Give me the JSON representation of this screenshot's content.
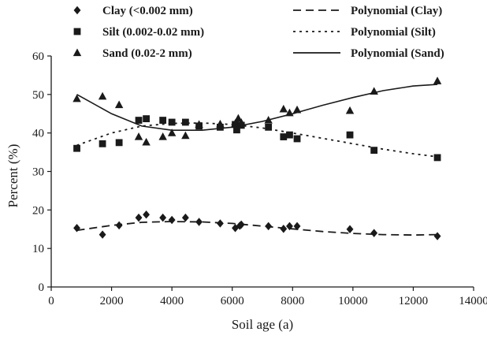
{
  "chart_data": {
    "type": "scatter",
    "title": "",
    "xlabel": "Soil age (a)",
    "ylabel": "Percent (%)",
    "xlim": [
      0,
      14000
    ],
    "ylim": [
      0,
      60
    ],
    "xticks": [
      "0",
      "2000",
      "4000",
      "6000",
      "8000",
      "10000",
      "12000",
      "14000"
    ],
    "yticks": [
      "0",
      "10",
      "20",
      "30",
      "40",
      "50",
      "60"
    ],
    "grid": false,
    "legend_placement": "top",
    "series": [
      {
        "name": "Clay (<0.002 mm)",
        "marker": "diamond",
        "color": "#1a1a1a",
        "points": [
          [
            850,
            15.3
          ],
          [
            1700,
            13.6
          ],
          [
            2250,
            16.0
          ],
          [
            2900,
            18.0
          ],
          [
            3150,
            18.8
          ],
          [
            3700,
            18.0
          ],
          [
            4000,
            17.4
          ],
          [
            4450,
            18.0
          ],
          [
            4900,
            16.9
          ],
          [
            5600,
            16.5
          ],
          [
            6100,
            15.3
          ],
          [
            6250,
            15.9
          ],
          [
            6300,
            16.2
          ],
          [
            7200,
            15.8
          ],
          [
            7700,
            15.1
          ],
          [
            7900,
            15.8
          ],
          [
            8150,
            15.8
          ],
          [
            9900,
            15.0
          ],
          [
            10700,
            14.0
          ],
          [
            12800,
            13.2
          ]
        ]
      },
      {
        "name": "Silt (0.002-0.02 mm)",
        "marker": "square",
        "color": "#1a1a1a",
        "points": [
          [
            850,
            36.0
          ],
          [
            1700,
            37.2
          ],
          [
            2250,
            37.5
          ],
          [
            2900,
            43.3
          ],
          [
            3150,
            43.7
          ],
          [
            3700,
            43.3
          ],
          [
            4000,
            42.8
          ],
          [
            4450,
            42.8
          ],
          [
            4900,
            41.8
          ],
          [
            5600,
            41.5
          ],
          [
            6100,
            42.2
          ],
          [
            6150,
            40.8
          ],
          [
            6300,
            42.0
          ],
          [
            7200,
            41.5
          ],
          [
            7700,
            39.0
          ],
          [
            7900,
            39.5
          ],
          [
            8150,
            38.5
          ],
          [
            9900,
            39.5
          ],
          [
            10700,
            35.5
          ],
          [
            12800,
            33.6
          ]
        ]
      },
      {
        "name": "Sand (0.02-2 mm)",
        "marker": "triangle",
        "color": "#1a1a1a",
        "points": [
          [
            850,
            48.9
          ],
          [
            1700,
            49.5
          ],
          [
            2250,
            47.3
          ],
          [
            2900,
            39.0
          ],
          [
            3150,
            37.6
          ],
          [
            3700,
            39.0
          ],
          [
            4000,
            40.0
          ],
          [
            4450,
            39.3
          ],
          [
            4900,
            42.2
          ],
          [
            5600,
            42.3
          ],
          [
            6100,
            42.5
          ],
          [
            6200,
            43.8
          ],
          [
            6300,
            42.7
          ],
          [
            7200,
            43.3
          ],
          [
            7700,
            46.2
          ],
          [
            7900,
            45.2
          ],
          [
            8150,
            46.0
          ],
          [
            9900,
            45.8
          ],
          [
            10700,
            50.8
          ],
          [
            12800,
            53.5
          ]
        ]
      }
    ],
    "trendlines": [
      {
        "name": "Polynomial (Clay)",
        "style": "dashed",
        "points": [
          [
            850,
            14.7
          ],
          [
            2000,
            16.0
          ],
          [
            3000,
            16.8
          ],
          [
            4000,
            17.0
          ],
          [
            5000,
            16.9
          ],
          [
            6000,
            16.5
          ],
          [
            7000,
            15.8
          ],
          [
            8000,
            15.1
          ],
          [
            9000,
            14.4
          ],
          [
            10000,
            13.9
          ],
          [
            11000,
            13.6
          ],
          [
            12000,
            13.5
          ],
          [
            12800,
            13.6
          ]
        ]
      },
      {
        "name": "Polynomial (Silt)",
        "style": "dotted",
        "points": [
          [
            850,
            36.8
          ],
          [
            2000,
            40.0
          ],
          [
            3000,
            41.8
          ],
          [
            4000,
            42.5
          ],
          [
            5000,
            42.6
          ],
          [
            6000,
            42.2
          ],
          [
            7000,
            41.3
          ],
          [
            8000,
            40.0
          ],
          [
            9000,
            38.6
          ],
          [
            10000,
            37.2
          ],
          [
            11000,
            35.8
          ],
          [
            12000,
            34.6
          ],
          [
            12800,
            33.8
          ]
        ]
      },
      {
        "name": "Polynomial (Sand)",
        "style": "solid",
        "points": [
          [
            850,
            50.0
          ],
          [
            2000,
            45.0
          ],
          [
            3000,
            41.8
          ],
          [
            4000,
            40.7
          ],
          [
            5000,
            40.7
          ],
          [
            6000,
            41.5
          ],
          [
            7000,
            43.0
          ],
          [
            8000,
            45.0
          ],
          [
            9000,
            47.2
          ],
          [
            10000,
            49.2
          ],
          [
            11000,
            51.0
          ],
          [
            12000,
            52.2
          ],
          [
            12800,
            52.6
          ]
        ]
      }
    ]
  }
}
